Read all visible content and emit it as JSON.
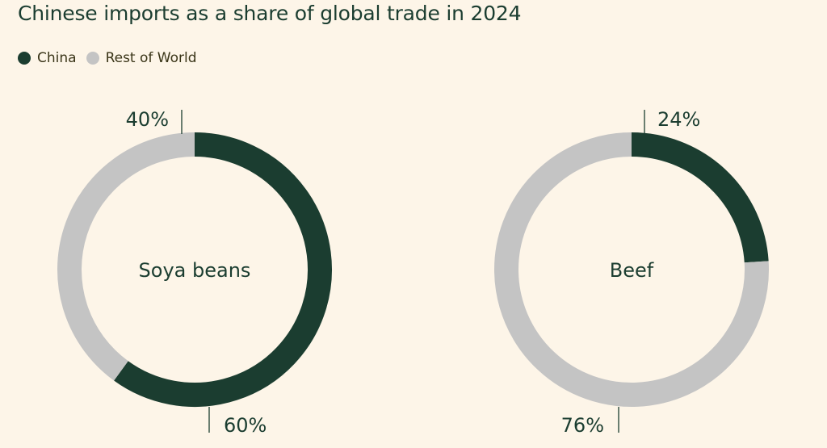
{
  "title": "Chinese imports as a share of global trade in 2024",
  "legend": [
    {
      "label": "China",
      "color": "#1b3d30"
    },
    {
      "label": "Rest of World",
      "color": "#c4c4c4"
    }
  ],
  "chart_data": [
    {
      "type": "pie",
      "title": "Soya beans",
      "slices": [
        {
          "label": "China",
          "value": 60,
          "display": "60%",
          "color": "#1b3d30"
        },
        {
          "label": "Rest of World",
          "value": 40,
          "display": "40%",
          "color": "#c4c4c4"
        }
      ]
    },
    {
      "type": "pie",
      "title": "Beef",
      "slices": [
        {
          "label": "China",
          "value": 24,
          "display": "24%",
          "color": "#1b3d30"
        },
        {
          "label": "Rest of World",
          "value": 76,
          "display": "76%",
          "color": "#c4c4c4"
        }
      ]
    }
  ]
}
